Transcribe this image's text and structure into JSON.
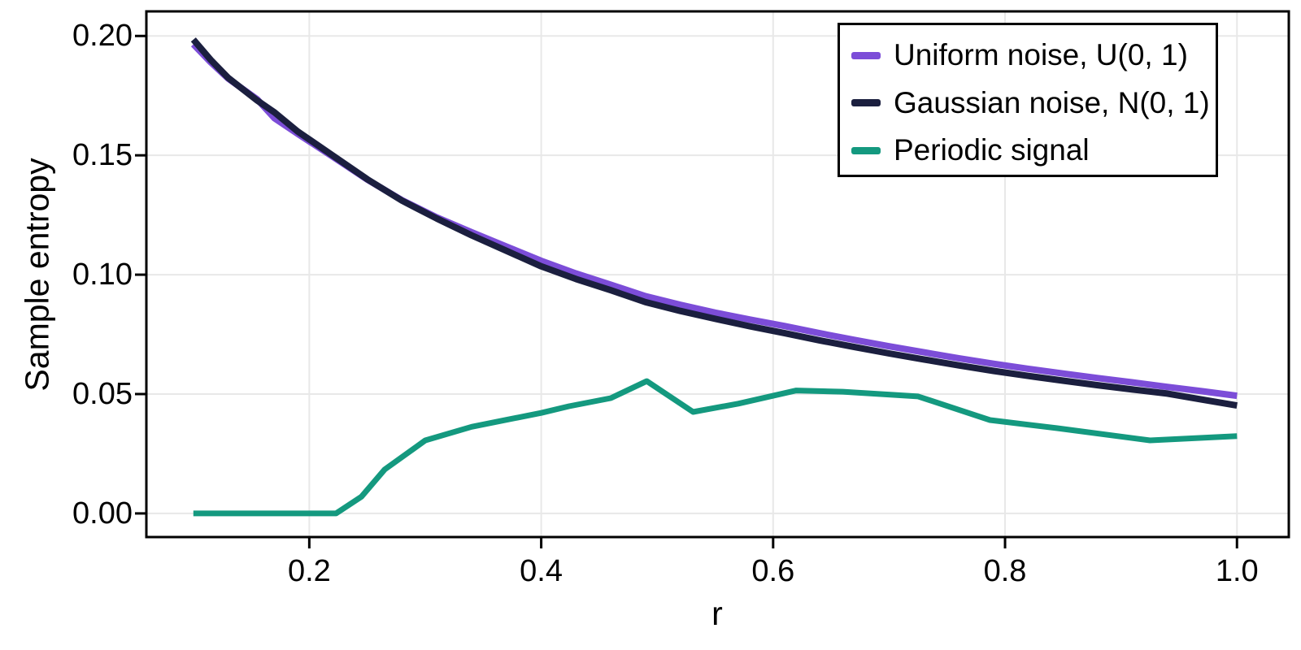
{
  "figure": {
    "background": "#FFFFFF"
  },
  "chart_data": {
    "type": "line",
    "title": "",
    "xlabel": "r",
    "ylabel": "Sample entropy",
    "grid": true,
    "grid_color": "#E8E8E8",
    "spine_color": "#000000",
    "xlim": [
      0.0595,
      1.0447
    ],
    "ylim": [
      -0.0099,
      0.2103
    ],
    "xticks": {
      "values": [
        0.2,
        0.4,
        0.6,
        0.8,
        1.0
      ],
      "labels": [
        "0.2",
        "0.4",
        "0.6",
        "0.8",
        "1.0"
      ]
    },
    "yticks": {
      "values": [
        0.0,
        0.05,
        0.1,
        0.15,
        0.2
      ],
      "labels": [
        "0.00",
        "0.05",
        "0.10",
        "0.15",
        "0.20"
      ]
    },
    "legend": {
      "position": "top-right",
      "background": "#FFFFFF",
      "border_color": "#000000"
    },
    "series": [
      {
        "name": "Uniform noise, U(0, 1)",
        "color": "#7C4DD8",
        "line_width": 8,
        "x": [
          0.1,
          0.115,
          0.13,
          0.155,
          0.17,
          0.19,
          0.22,
          0.25,
          0.28,
          0.31,
          0.34,
          0.37,
          0.4,
          0.43,
          0.46,
          0.49,
          0.52,
          0.55,
          0.58,
          0.61,
          0.64,
          0.67,
          0.7,
          0.73,
          0.76,
          0.79,
          0.82,
          0.85,
          0.88,
          0.91,
          0.94,
          0.97,
          1.0
        ],
        "y": [
          0.1965,
          0.189,
          0.1822,
          0.1735,
          0.1655,
          0.159,
          0.1495,
          0.1398,
          0.1312,
          0.124,
          0.1178,
          0.1118,
          0.1058,
          0.1005,
          0.0958,
          0.091,
          0.0874,
          0.0841,
          0.0812,
          0.0785,
          0.0755,
          0.0727,
          0.07,
          0.0675,
          0.065,
          0.0627,
          0.0606,
          0.0586,
          0.0567,
          0.0549,
          0.053,
          0.0512,
          0.0493
        ]
      },
      {
        "name": "Gaussian noise, N(0, 1)",
        "color": "#1B1F3F",
        "line_width": 8,
        "x": [
          0.1,
          0.115,
          0.13,
          0.155,
          0.17,
          0.19,
          0.22,
          0.25,
          0.28,
          0.31,
          0.34,
          0.37,
          0.4,
          0.43,
          0.46,
          0.49,
          0.52,
          0.55,
          0.58,
          0.61,
          0.64,
          0.67,
          0.7,
          0.73,
          0.76,
          0.79,
          0.82,
          0.85,
          0.88,
          0.91,
          0.94,
          0.97,
          1.0
        ],
        "y": [
          0.1985,
          0.19,
          0.1825,
          0.173,
          0.168,
          0.16,
          0.15,
          0.14,
          0.131,
          0.1235,
          0.1165,
          0.11,
          0.1035,
          0.0982,
          0.0935,
          0.0885,
          0.0848,
          0.0815,
          0.0784,
          0.0755,
          0.0725,
          0.0697,
          0.067,
          0.0645,
          0.062,
          0.0597,
          0.0576,
          0.0556,
          0.0537,
          0.0519,
          0.0502,
          0.0477,
          0.0452
        ]
      },
      {
        "name": "Periodic signal",
        "color": "#14997F",
        "line_width": 7,
        "x": [
          0.1,
          0.145,
          0.19,
          0.223,
          0.245,
          0.265,
          0.3,
          0.34,
          0.37,
          0.4,
          0.424,
          0.46,
          0.491,
          0.531,
          0.57,
          0.62,
          0.66,
          0.725,
          0.787,
          0.845,
          0.925,
          1.0
        ],
        "y": [
          0.0,
          0.0,
          0.0,
          0.0,
          0.007,
          0.0184,
          0.0306,
          0.0363,
          0.0392,
          0.0421,
          0.0449,
          0.0483,
          0.0554,
          0.0425,
          0.046,
          0.0515,
          0.051,
          0.049,
          0.0391,
          0.0357,
          0.0306,
          0.0324
        ]
      }
    ]
  }
}
